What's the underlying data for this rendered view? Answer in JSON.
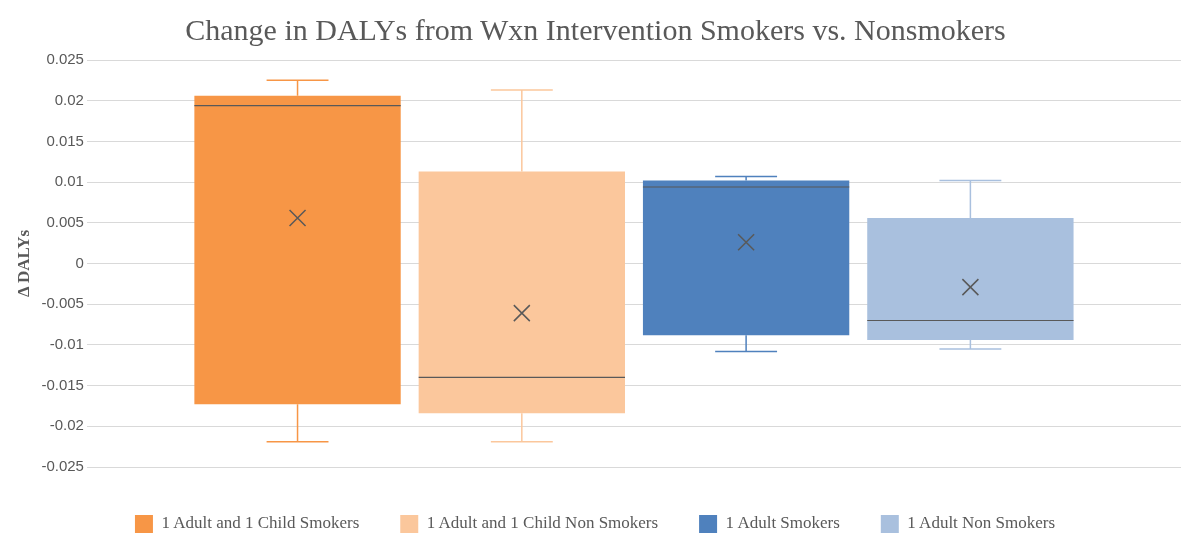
{
  "chart_data": {
    "type": "box",
    "title": "Change in DALYs from Wxn Intervention Smokers vs. Nonsmokers",
    "ylabel": "Δ DALYs",
    "categories": [
      null
    ],
    "series": [
      {
        "name": "1 Adult and 1 Child Smokers",
        "color": "#f79646",
        "boxes": [
          {
            "low": -0.0219,
            "q1": -0.0173,
            "median": 0.0194,
            "q3": 0.0206,
            "high": 0.0225,
            "mean": 0.0056
          }
        ]
      },
      {
        "name": "1 Adult and 1 Child Non Smokers",
        "color": "#fbc79c",
        "boxes": [
          {
            "low": -0.0219,
            "q1": -0.0184,
            "median": -0.014,
            "q3": 0.0113,
            "high": 0.0213,
            "mean": -0.0061
          }
        ]
      },
      {
        "name": "1 Adult Smokers",
        "color": "#4f81bd",
        "boxes": [
          {
            "low": -0.0108,
            "q1": -0.0088,
            "median": 0.0094,
            "q3": 0.0102,
            "high": 0.0107,
            "mean": 0.0026
          }
        ]
      },
      {
        "name": "1 Adult Non Smokers",
        "color": "#a9c0de",
        "boxes": [
          {
            "low": -0.0105,
            "q1": -0.0094,
            "median": -0.007,
            "q3": 0.0056,
            "high": 0.0102,
            "mean": -0.0029
          }
        ]
      }
    ],
    "ylim": [
      -0.025,
      0.025
    ],
    "yticks": [
      -0.025,
      -0.02,
      -0.015,
      -0.01,
      -0.005,
      0,
      0.005,
      0.01,
      0.015,
      0.02,
      0.025
    ],
    "grid": "y",
    "legend": "bottom"
  }
}
